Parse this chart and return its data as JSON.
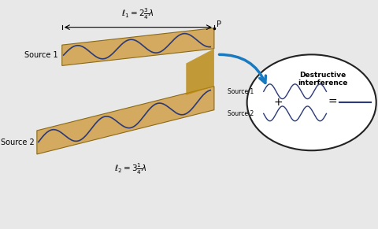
{
  "bg_color": "#e8e8e8",
  "tan_color": "#d4aa60",
  "tan_dark_color": "#b8860b",
  "wave_color": "#2a3a7a",
  "arrow_color": "#1a7abf",
  "source1_label": "Source 1",
  "source2_label": "Source 2",
  "label1": "ℓ₁ = 2¾λ",
  "label2": "ℓ₂ = 3¼λ",
  "point_label": "P",
  "dest_title": "Destructive\ninterference",
  "plus_sign": "+",
  "equals_sign": "=",
  "ellipse_color": "#ffffff",
  "ellipse_edge": "#222222"
}
